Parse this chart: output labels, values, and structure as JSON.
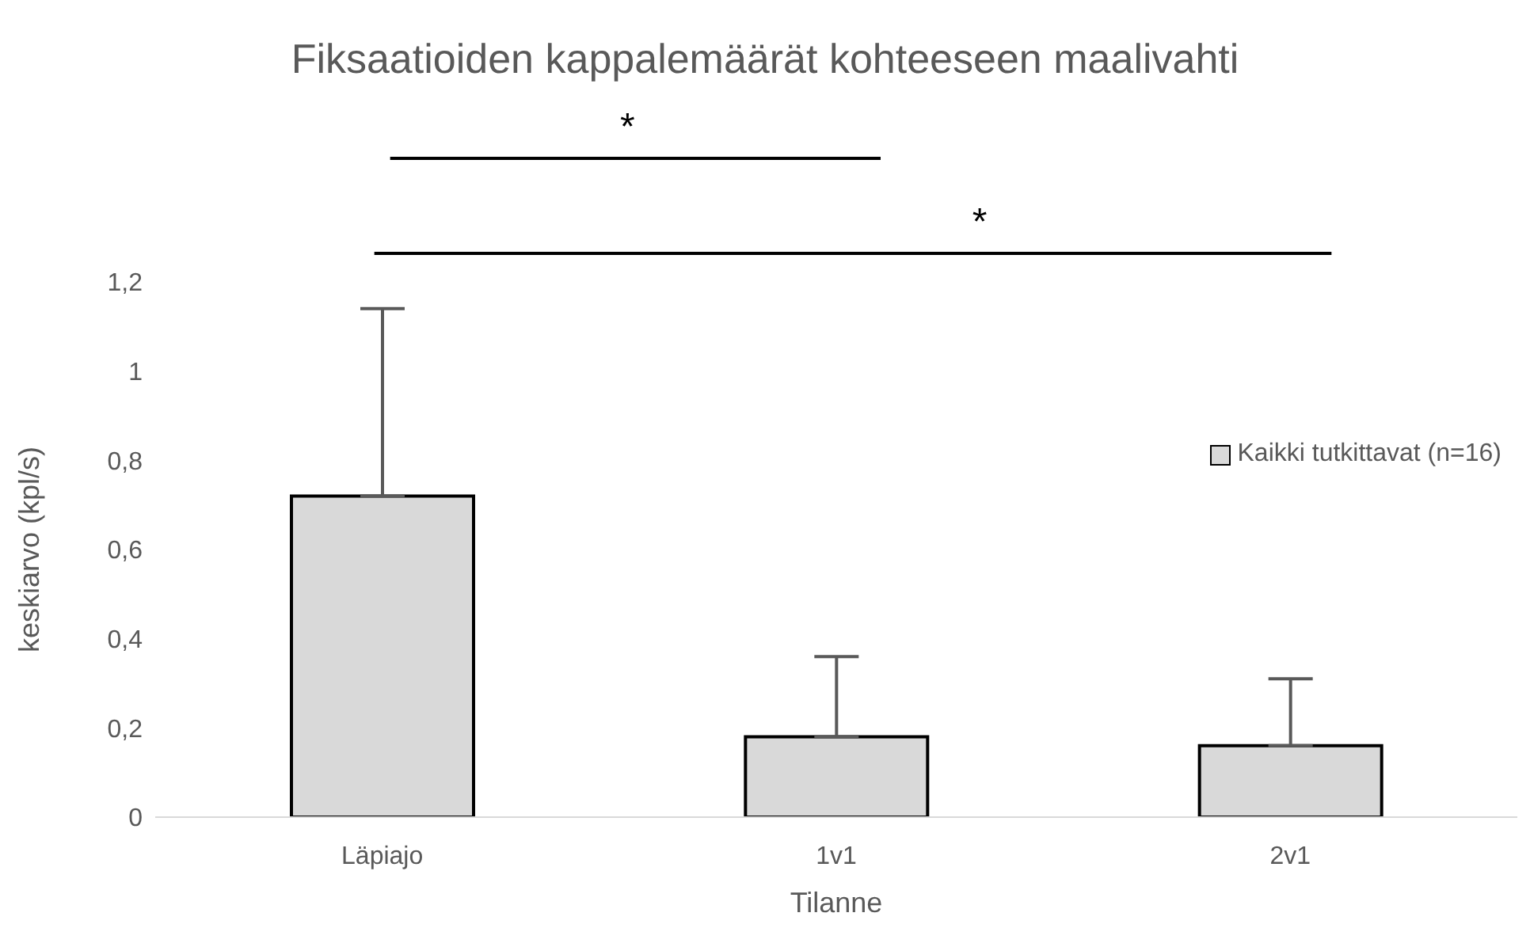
{
  "chart_data": {
    "type": "bar",
    "title": "Fiksaatioiden kappalemäärät kohteeseen maalivahti",
    "xlabel": "Tilanne",
    "ylabel": "keskiarvo (kpl/s)",
    "categories": [
      "Läpiajo",
      "1v1",
      "2v1"
    ],
    "series": [
      {
        "name": "Kaikki tutkittavat (n=16)",
        "color": "#d9d9d9",
        "values": [
          0.72,
          0.18,
          0.16
        ],
        "errors": [
          [
            0.72,
            1.14
          ],
          [
            0.18,
            0.36
          ],
          [
            0.16,
            0.31
          ]
        ]
      }
    ],
    "ylim": [
      0,
      1.2
    ],
    "yticks": [
      0,
      {
        "value": 0.2,
        "label": "0,2"
      },
      {
        "value": 0.4,
        "label": "0,4"
      },
      {
        "value": 0.6,
        "label": "0,6"
      },
      {
        "value": 0.8,
        "label": "0,8"
      },
      1,
      {
        "value": 1.2,
        "label": "1,2"
      }
    ],
    "grid": false,
    "legend": "right",
    "annotations": [
      "*",
      "*"
    ]
  }
}
